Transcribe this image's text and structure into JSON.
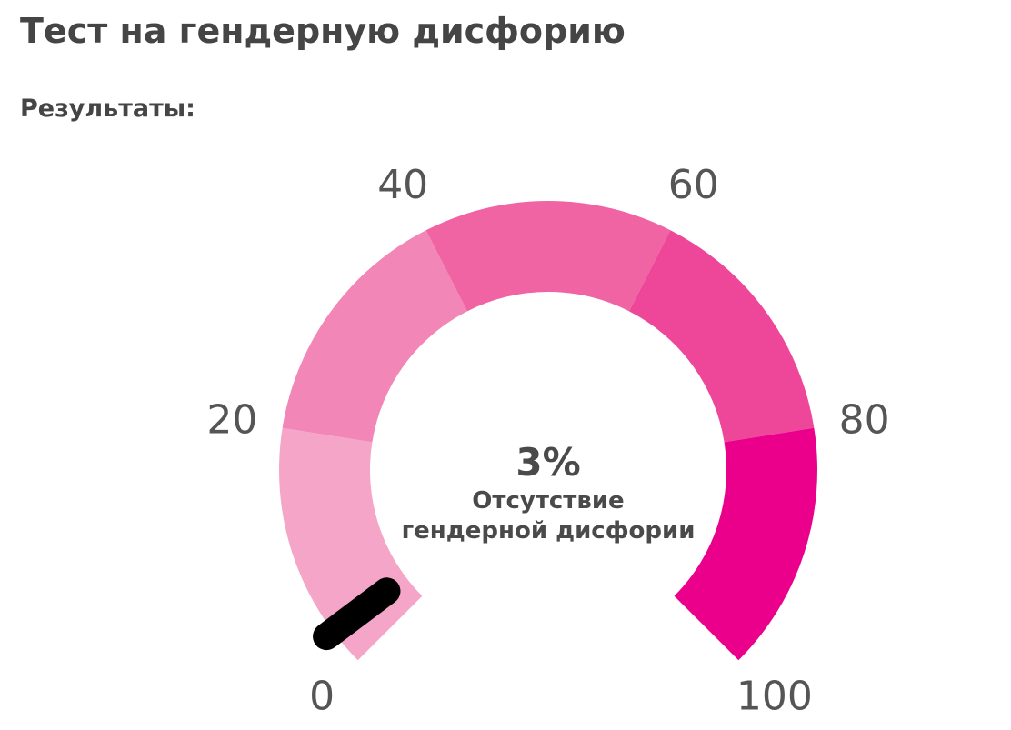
{
  "page": {
    "title": "Тест на гендерную дисфорию",
    "subtitle": "Результаты:"
  },
  "chart_data": {
    "type": "gauge",
    "min": 0,
    "max": 100,
    "value": 3,
    "value_text": "3%",
    "result_label_line1": "Отсутствие",
    "result_label_line2": "гендерной дисфории",
    "ticks": [
      "0",
      "20",
      "40",
      "60",
      "80",
      "100"
    ],
    "segments": [
      {
        "from": 0,
        "to": 20,
        "color": "#f5a6c8"
      },
      {
        "from": 20,
        "to": 40,
        "color": "#f286b6"
      },
      {
        "from": 40,
        "to": 60,
        "color": "#f064a4"
      },
      {
        "from": 60,
        "to": 80,
        "color": "#ee4799"
      },
      {
        "from": 80,
        "to": 100,
        "color": "#eb008b"
      }
    ],
    "needle_color": "#000000"
  }
}
